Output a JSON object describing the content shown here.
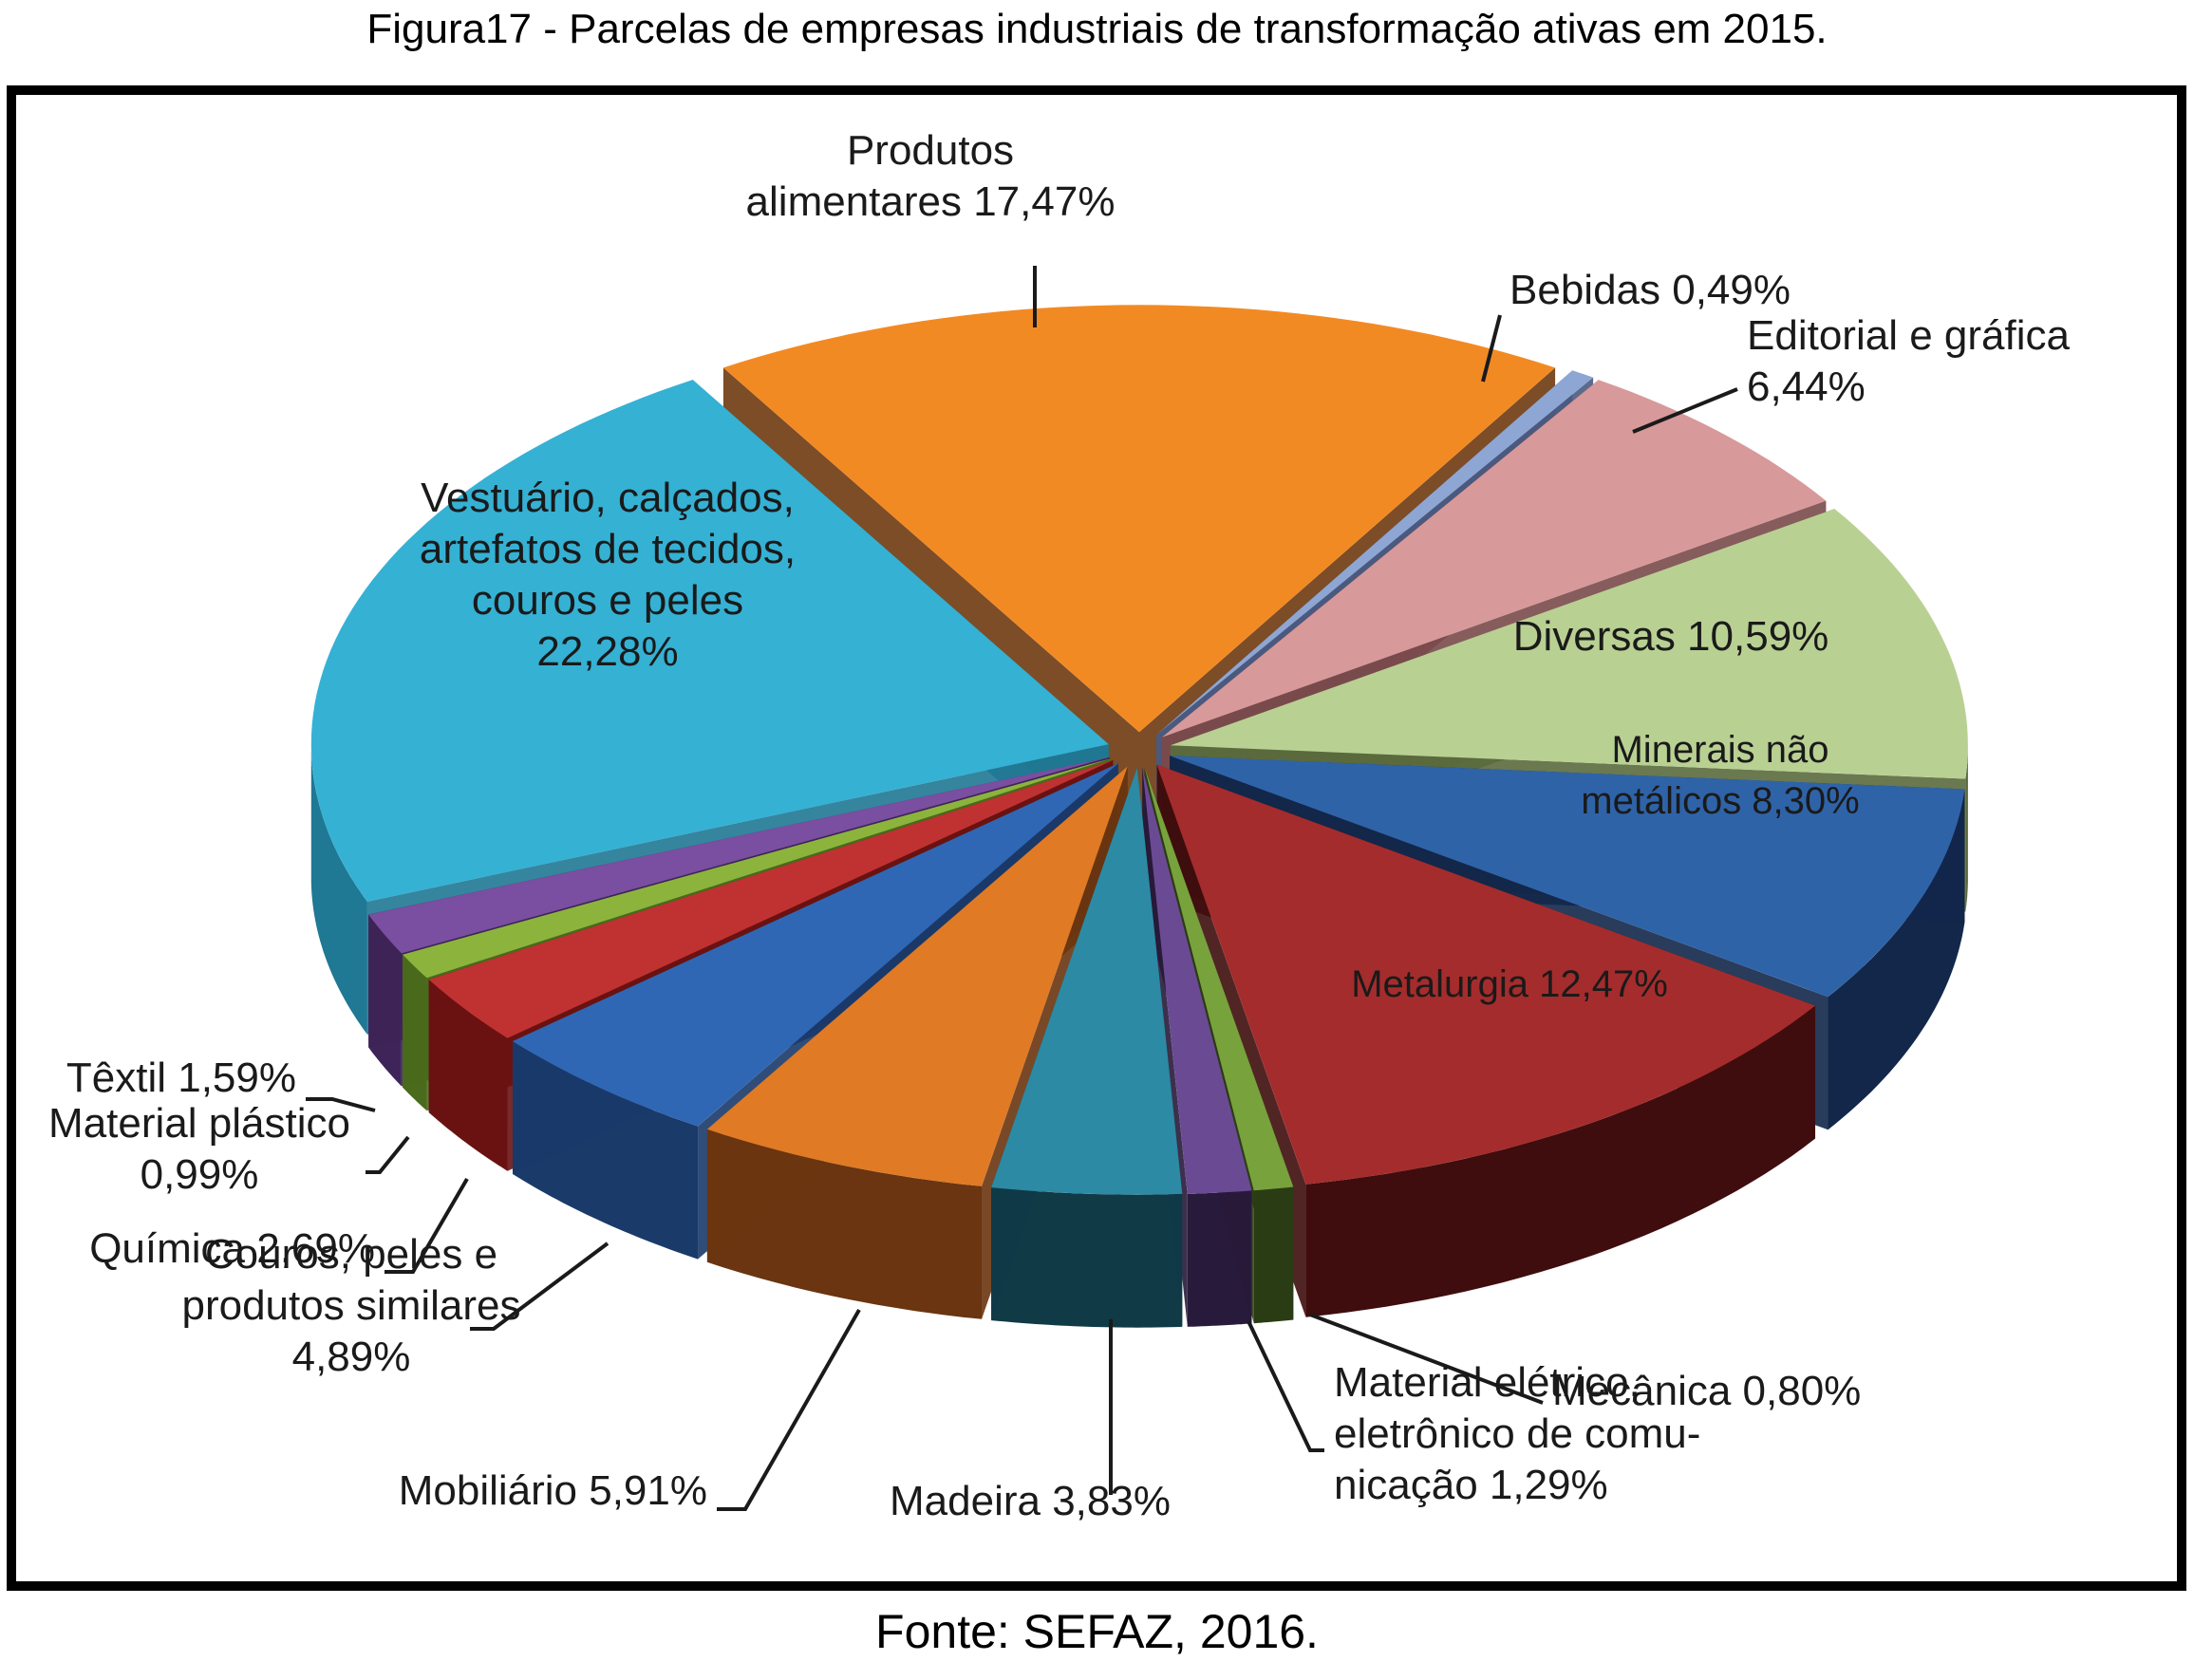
{
  "title": "Figura17 - Parcelas de empresas industriais de transformação ativas em 2015.",
  "source": "Fonte: SEFAZ, 2016.",
  "chart_data": {
    "type": "pie",
    "title": "Figura17 - Parcelas de empresas industriais de transformação ativas em 2015.",
    "unit": "%",
    "slices": [
      {
        "category": "Produtos alimentares",
        "value": 17.47,
        "label_lines": [
          "Produtos",
          "alimentares  17,47%"
        ],
        "color": "#f28a24",
        "dark": "#6e3a10"
      },
      {
        "category": "Bebidas",
        "value": 0.49,
        "label_lines": [
          "Bebidas 0,49%"
        ],
        "color": "#8ea6d4",
        "dark": "#4a5a80"
      },
      {
        "category": "Editorial e gráfica",
        "value": 6.44,
        "label_lines": [
          "Editorial  e gráfica",
          "6,44%"
        ],
        "color": "#d8999a",
        "dark": "#7a4a4b"
      },
      {
        "category": "Diversas",
        "value": 10.59,
        "label_lines": [
          "Diversas  10,59%"
        ],
        "color": "#b9d093",
        "dark": "#5a6a3c"
      },
      {
        "category": "Minerais não metálicos",
        "value": 8.3,
        "label_lines": [
          "Minerais não",
          "metálicos 8,30%"
        ],
        "color": "#2f63a8",
        "dark": "#12274a"
      },
      {
        "category": "Metalurgia",
        "value": 12.47,
        "label_lines": [
          "Metalurgia 12,47%"
        ],
        "color": "#a52c2c",
        "dark": "#3f0d0d"
      },
      {
        "category": "Mecânica",
        "value": 0.8,
        "label_lines": [
          "Mecânica  0,80%"
        ],
        "color": "#78a23c",
        "dark": "#2a3c14"
      },
      {
        "category": "Material elétrico, eletrônico de comunicação",
        "value": 1.29,
        "label_lines": [
          "Material elétrico,",
          "eletrônico de comu-",
          "nicação  1,29%"
        ],
        "color": "#6b4a94",
        "dark": "#281a3a"
      },
      {
        "category": "Madeira",
        "value": 3.83,
        "label_lines": [
          "Madeira  3,83%"
        ],
        "color": "#2c8aa4",
        "dark": "#0f3a46"
      },
      {
        "category": "Mobiliário",
        "value": 5.91,
        "label_lines": [
          "Mobiliário  5,91%"
        ],
        "color": "#e07a24",
        "dark": "#6a3510"
      },
      {
        "category": "Couros, peles e produtos similares",
        "value": 4.89,
        "label_lines": [
          "Couros,  peles  e",
          "produtos  similares",
          "4,89%"
        ],
        "color": "#3067b4",
        "dark": "#1a3a6a"
      },
      {
        "category": "Química",
        "value": 2.69,
        "label_lines": [
          "Química  2,69%"
        ],
        "color": "#c03232",
        "dark": "#6a1212"
      },
      {
        "category": "Material plástico",
        "value": 0.99,
        "label_lines": [
          "Material  plástico",
          "0,99%"
        ],
        "color": "#8cb43c",
        "dark": "#4a6a1c"
      },
      {
        "category": "Têxtil",
        "value": 1.59,
        "label_lines": [
          "Têxtil  1,59%"
        ],
        "color": "#7a4ea0",
        "dark": "#3e2458"
      },
      {
        "category": "Vestuário, calçados, artefatos de tecidos, couros e peles",
        "value": 22.28,
        "label_lines": [
          "Vestuário,  calçados,",
          "artefatos de tecidos,",
          "couros  e  peles",
          "22,28%"
        ],
        "color": "#35b1d4",
        "dark": "#1f7894"
      }
    ]
  }
}
